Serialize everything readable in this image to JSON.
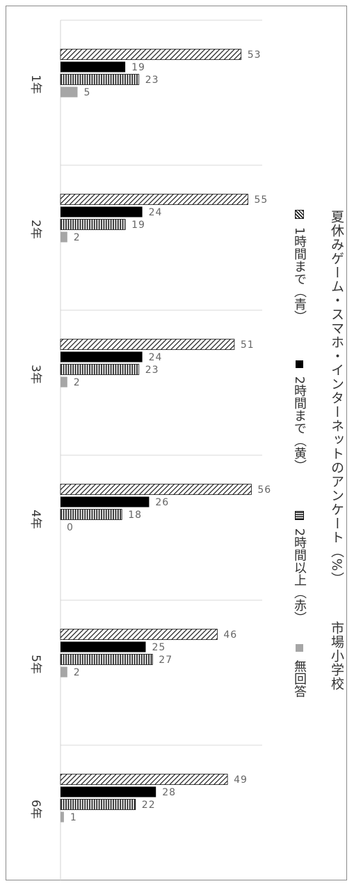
{
  "chart_data": {
    "type": "bar",
    "orientation": "horizontal",
    "title": "夏休みゲーム・スマホ・インターネットのアンケート（%）",
    "subtitle": "市場小学校",
    "categories": [
      "1年",
      "2年",
      "3年",
      "4年",
      "5年",
      "6年"
    ],
    "series": [
      {
        "name": "1時間まで（青）",
        "values": [
          53,
          55,
          51,
          56,
          46,
          49
        ],
        "pattern": "diagonal",
        "color": "#333333"
      },
      {
        "name": "2時間まで（黄）",
        "values": [
          19,
          24,
          24,
          26,
          25,
          28
        ],
        "pattern": "solid",
        "color": "#000000"
      },
      {
        "name": "2時間以上（赤）",
        "values": [
          23,
          19,
          23,
          18,
          27,
          22
        ],
        "pattern": "vertical",
        "color": "#222222"
      },
      {
        "name": "無回答",
        "values": [
          5,
          2,
          2,
          0,
          2,
          1
        ],
        "pattern": "solid",
        "color": "#a6a6a6"
      }
    ],
    "xlim": [
      0,
      60
    ],
    "grid": true,
    "data_labels": true,
    "legend_position": "right"
  }
}
